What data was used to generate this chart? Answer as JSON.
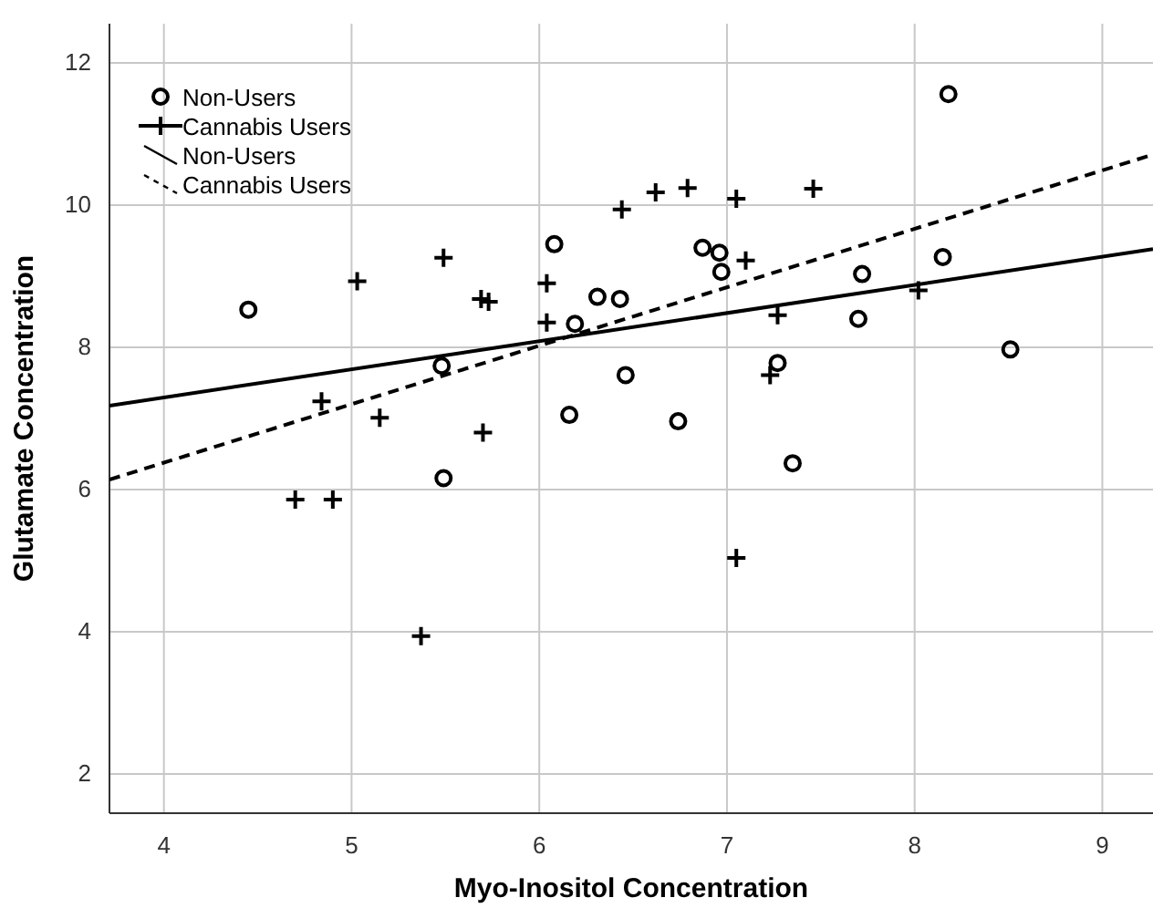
{
  "chart_data": {
    "type": "scatter",
    "xlabel": "Myo-Inositol Concentration",
    "ylabel": "Glutamate Concentration",
    "xlim": [
      3.71,
      9.27
    ],
    "ylim": [
      1.45,
      12.55
    ],
    "xticks": [
      4,
      5,
      6,
      7,
      8,
      9
    ],
    "yticks": [
      2,
      4,
      6,
      8,
      10,
      12
    ],
    "grid": true,
    "legend": "top left",
    "series": [
      {
        "name": "Non-Users",
        "marker": "circle",
        "color": "#000000",
        "x": [
          4.45,
          6.08,
          6.19,
          6.31,
          6.43,
          5.48,
          6.46,
          6.16,
          5.49,
          8.18,
          6.87,
          6.96,
          6.97,
          7.72,
          8.15,
          7.7,
          7.27,
          6.74,
          8.51,
          7.35
        ],
        "values": [
          8.53,
          9.45,
          8.33,
          8.71,
          8.68,
          7.74,
          7.61,
          7.05,
          6.16,
          11.56,
          9.4,
          9.33,
          9.06,
          9.03,
          9.27,
          8.4,
          7.78,
          6.96,
          7.97,
          6.37
        ]
      },
      {
        "name": "Cannabis Users",
        "marker": "cross",
        "color": "#000000",
        "x": [
          6.44,
          6.62,
          6.79,
          7.05,
          7.46,
          5.49,
          5.03,
          6.04,
          5.69,
          5.73,
          6.04,
          4.84,
          5.15,
          5.7,
          4.7,
          4.9,
          5.37,
          7.1,
          7.27,
          8.02,
          7.23,
          7.05
        ],
        "values": [
          9.94,
          10.18,
          10.24,
          10.09,
          10.23,
          9.26,
          8.93,
          8.9,
          8.68,
          8.64,
          8.35,
          7.24,
          7.01,
          6.8,
          5.86,
          5.86,
          3.94,
          9.22,
          8.45,
          8.8,
          7.61,
          5.04
        ]
      },
      {
        "name": "Non-Users",
        "type": "line",
        "line_style": "solid",
        "color": "#000000",
        "x": [
          3.71,
          9.27
        ],
        "values": [
          7.18,
          9.38
        ]
      },
      {
        "name": "Cannabis Users",
        "type": "line",
        "line_style": "dashed",
        "color": "#000000",
        "x": [
          3.71,
          9.27
        ],
        "values": [
          6.14,
          10.71
        ]
      }
    ]
  }
}
